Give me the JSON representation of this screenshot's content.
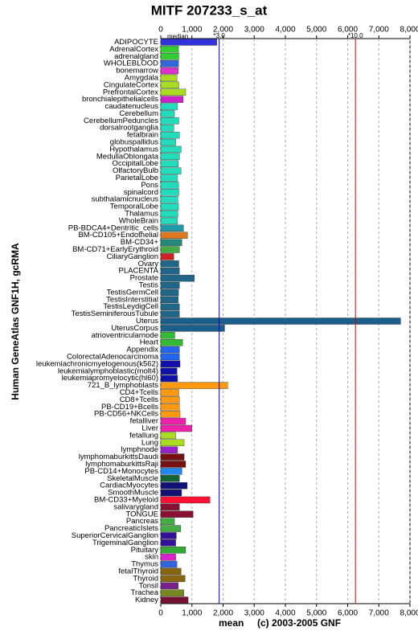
{
  "chart_data": {
    "type": "bar",
    "orientation": "horizontal",
    "title": "MITF 207233_s_at",
    "y_label": "Human GeneAtlas GNF1H, gcRMA",
    "x_label": "mean",
    "credit": "(c) 2003-2005 GNF",
    "median_label": "median",
    "categories": [
      "ADIPOCYTE",
      "AdrenalCortex",
      "adrenalgland",
      "WHOLEBLOOD",
      "bonemarrow",
      "Amygdala",
      "CingulateCortex",
      "PrefrontalCortex",
      "bronchialepithelialcells",
      "caudatenucleus",
      "Cerebellum",
      "CerebellumPeduncles",
      "dorsalrootganglia",
      "fetalbrain",
      "globuspallidus",
      "Hypothalamus",
      "MedullaOblongata",
      "OccipitalLobe",
      "OlfactoryBulb",
      "ParietalLobe",
      "Pons",
      "spinalcord",
      "subthalamicnucleus",
      "TemporalLobe",
      "Thalamus",
      "WholeBrain",
      "PB-BDCA4+Dentritic_cells",
      "BM-CD105+Endothelial",
      "BM-CD34+",
      "BM-CD71+EarlyErythroid",
      "CiliaryGanglion",
      "Ovary",
      "PLACENTA",
      "Prostate",
      "Testis",
      "TestisGermCell",
      "TestisInterstitial",
      "TestisLeydigCell",
      "TestisSeminiferousTubule",
      "Uterus",
      "UterusCorpus",
      "atrioventricularnode",
      "Heart",
      "Appendix",
      "ColorectalAdenocarcinoma",
      "leukemiachronicmyelogenous(k562)",
      "leukemialymphoblastic(molt4)",
      "leukemiapromyelocytic(hl60)",
      "721_B_lymphoblasts",
      "CD4+Tcells",
      "CD8+Tcells",
      "PB-CD19+Bcells",
      "PB-CD56+NKCells",
      "fetalliver",
      "Liver",
      "fetallung",
      "Lung",
      "lymphnode",
      "lymphomaburkittsDaudi",
      "lymphomaburkittsRaji",
      "PB-CD14+Monocytes",
      "SkeletalMuscle",
      "CardiacMyocytes",
      "SmoothMuscle",
      "BM-CD33+Myeloid",
      "salivarygland",
      "TONGUE",
      "Pancreas",
      "PancreaticIslets",
      "SuperiorCervicalGanglion",
      "TrigeminalGanglion",
      "Pituitary",
      "skin",
      "Thymus",
      "fetalThyroid",
      "Thyroid",
      "Tonsil",
      "Trachea",
      "Kidney"
    ],
    "values": [
      1800,
      570,
      580,
      570,
      560,
      520,
      580,
      800,
      720,
      540,
      440,
      580,
      420,
      600,
      480,
      650,
      600,
      560,
      650,
      540,
      570,
      580,
      550,
      570,
      550,
      540,
      730,
      860,
      680,
      600,
      420,
      580,
      600,
      1080,
      600,
      570,
      560,
      600,
      600,
      7700,
      2050,
      450,
      700,
      600,
      600,
      620,
      520,
      540,
      2150,
      580,
      600,
      600,
      620,
      800,
      1000,
      480,
      750,
      540,
      750,
      800,
      680,
      600,
      850,
      670,
      1580,
      600,
      1040,
      440,
      640,
      500,
      480,
      800,
      480,
      520,
      650,
      780,
      560,
      740,
      880
    ],
    "colors": [
      "#3333dd",
      "#33cc33",
      "#33cc33",
      "#3366dd",
      "#dd33cc",
      "#aadd22",
      "#aadd22",
      "#aadd22",
      "#cc22cc",
      "#22ddbb",
      "#22ddbb",
      "#22ddbb",
      "#22ddbb",
      "#22ddbb",
      "#22ddbb",
      "#22ddbb",
      "#22ddbb",
      "#22ddbb",
      "#22ddbb",
      "#22ddbb",
      "#22ddbb",
      "#22ddbb",
      "#22ddbb",
      "#22ddbb",
      "#22ddbb",
      "#22ddbb",
      "#2299aa",
      "#dd7722",
      "#228877",
      "#44aa44",
      "#cc2222",
      "#1f6688",
      "#1f6688",
      "#1f6688",
      "#1f6688",
      "#1f6688",
      "#1f6688",
      "#1f6688",
      "#1f6688",
      "#1a5f8a",
      "#1a5f8a",
      "#33bb33",
      "#33bb33",
      "#2266ee",
      "#2266ee",
      "#1111aa",
      "#1111aa",
      "#1111aa",
      "#ff9911",
      "#ff9911",
      "#ff9911",
      "#ff9911",
      "#ff9911",
      "#ee22aa",
      "#ee22aa",
      "#aadd22",
      "#aadd22",
      "#9922cc",
      "#771111",
      "#771111",
      "#2288ee",
      "#116633",
      "#111177",
      "#111177",
      "#ff1133",
      "#881133",
      "#881133",
      "#44aa44",
      "#44aa44",
      "#331199",
      "#331199",
      "#33aa33",
      "#dd22cc",
      "#3366dd",
      "#886611",
      "#886611",
      "#772288",
      "#778822",
      "#771133"
    ],
    "xlim": [
      0,
      8000
    ],
    "xticks": [
      0,
      {
        "value": 1000,
        "label": "1,000"
      },
      {
        "value": 2000,
        "label": "2,000"
      },
      {
        "value": 3000,
        "label": "3,000"
      },
      {
        "value": 4000,
        "label": "4,000"
      },
      {
        "value": 5000,
        "label": "5,000"
      },
      {
        "value": 6000,
        "label": "6,000"
      },
      {
        "value": 7000,
        "label": "7,000"
      },
      {
        "value": 8000,
        "label": "8,000"
      }
    ],
    "grid": true,
    "ref_lines": [
      {
        "label": "*3.0",
        "value": 1875,
        "color": "#0000cc"
      },
      {
        "label": "*10.0",
        "value": 6250,
        "color": "#dd0000"
      }
    ]
  }
}
